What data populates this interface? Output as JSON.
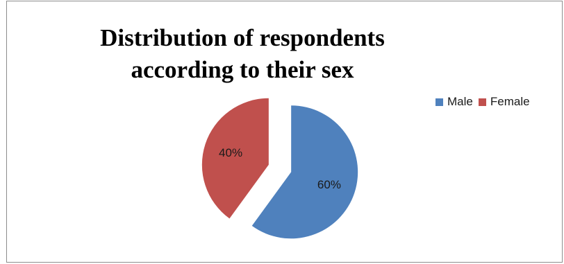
{
  "chart_data": {
    "type": "pie",
    "title_lines": [
      "Distribution of respondents",
      "according to their sex"
    ],
    "categories": [
      "Male",
      "Female"
    ],
    "values": [
      60,
      40
    ],
    "data_labels": [
      "60%",
      "40%"
    ],
    "colors": [
      "#4f81bd",
      "#c0504d"
    ],
    "exploded": true,
    "legend_position": "right"
  }
}
